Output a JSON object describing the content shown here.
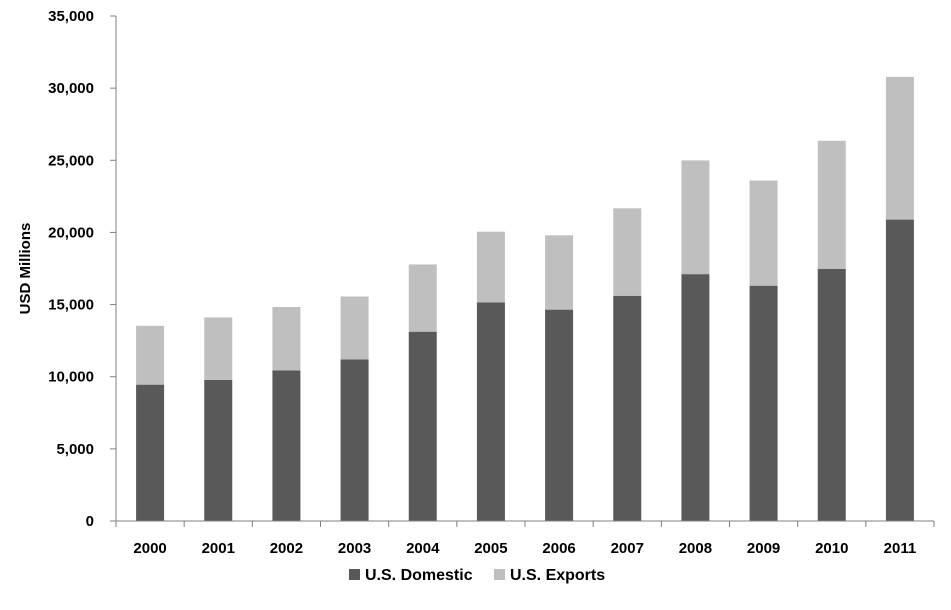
{
  "chart_data": {
    "type": "bar",
    "stacked": true,
    "categories": [
      "2000",
      "2001",
      "2002",
      "2003",
      "2004",
      "2005",
      "2006",
      "2007",
      "2008",
      "2009",
      "2010",
      "2011"
    ],
    "series": [
      {
        "name": "U.S. Domestic",
        "color": "#595959",
        "values": [
          9450,
          9780,
          10440,
          11200,
          13120,
          15150,
          14650,
          15610,
          17110,
          16310,
          17480,
          20890
        ]
      },
      {
        "name": "U.S. Exports",
        "color": "#bfbfbf",
        "values": [
          4080,
          4330,
          4390,
          4360,
          4660,
          4900,
          5150,
          6060,
          7880,
          7290,
          8870,
          9890
        ]
      }
    ],
    "title": "",
    "xlabel": "",
    "ylabel": "USD Millions",
    "ylim": [
      0,
      35000
    ],
    "yticks": [
      0,
      5000,
      10000,
      15000,
      20000,
      25000,
      30000,
      35000
    ],
    "ytick_labels": [
      "0",
      "5,000",
      "10,000",
      "15,000",
      "20,000",
      "25,000",
      "30,000",
      "35,000"
    ],
    "grid": false,
    "legend_position": "bottom"
  }
}
